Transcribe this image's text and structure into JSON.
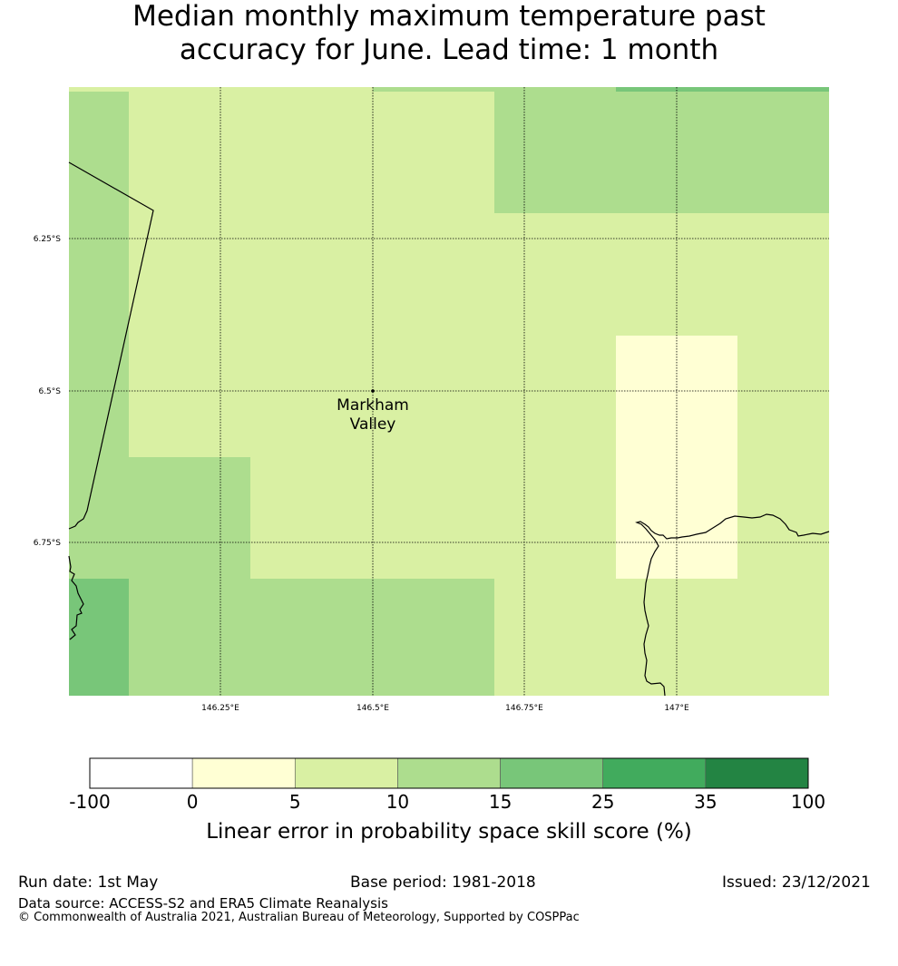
{
  "title": {
    "line1": "Median monthly maximum temperature past",
    "line2": "accuracy for June. Lead time: 1 month"
  },
  "map": {
    "lat_ticks": [
      "6.25°S",
      "6.5°S",
      "6.75°S"
    ],
    "lon_ticks": [
      "146.25°E",
      "146.5°E",
      "146.75°E",
      "147°E"
    ],
    "place": {
      "name_line1": "Markham",
      "name_line2": "Valley"
    },
    "bin_colors": {
      "0-5": "#ffffd4",
      "5-10": "#d9f0a3",
      "10-15": "#addd8e",
      "15-25": "#78c679",
      "25-35": "#41ab5d",
      "35-100": "#238443",
      "below-0": "#ffffff"
    }
  },
  "colorbar": {
    "labels": [
      "-100",
      "0",
      "5",
      "10",
      "15",
      "25",
      "35",
      "100"
    ],
    "colors": [
      "#ffffff",
      "#ffffd4",
      "#d9f0a3",
      "#addd8e",
      "#78c679",
      "#41ab5d",
      "#238443"
    ],
    "caption": "Linear error in probability space skill score (%)"
  },
  "footer": {
    "run_date": "Run date: 1st May",
    "base_period": "Base period: 1981-2018",
    "issued": "Issued: 23/12/2021",
    "data_source": "Data source: ACCESS-S2 and ERA5 Climate Reanalysis",
    "copyright": "© Commonwealth of Australia 2021, Australian Bureau of Meteorology, Supported by COSPPac"
  }
}
